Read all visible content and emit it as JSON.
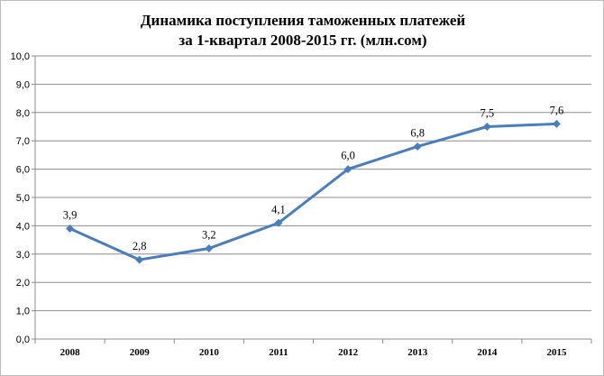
{
  "chart_data": {
    "type": "line",
    "title_line1": "Динамика поступления таможенных платежей",
    "title_line2": "за 1-квартал 2008-2015 гг. (млн.сом)",
    "categories": [
      "2008",
      "2009",
      "2010",
      "2011",
      "2012",
      "2013",
      "2014",
      "2015"
    ],
    "values": [
      3.9,
      2.8,
      3.2,
      4.1,
      6.0,
      6.8,
      7.5,
      7.6
    ],
    "data_labels": [
      "3,9",
      "2,8",
      "3,2",
      "4,1",
      "6,0",
      "6,8",
      "7,5",
      "7,6"
    ],
    "y_ticks": [
      "0,0",
      "1,0",
      "2,0",
      "3,0",
      "4,0",
      "5,0",
      "6,0",
      "7,0",
      "8,0",
      "9,0",
      "10,0"
    ],
    "ylim": [
      0,
      10
    ],
    "grid": true,
    "line_color": "#4a7ebb",
    "grid_color": "#8c8c8c"
  }
}
